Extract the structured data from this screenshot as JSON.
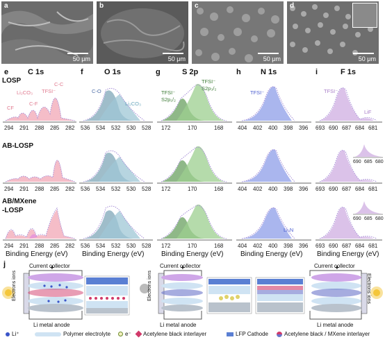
{
  "sem_panels": [
    {
      "letter": "a",
      "scale": "50 μm"
    },
    {
      "letter": "b",
      "scale": "50 μm"
    },
    {
      "letter": "c",
      "scale": "50 μm"
    },
    {
      "letter": "d",
      "scale": "50 μm"
    }
  ],
  "xps": {
    "columns": [
      {
        "letter": "e",
        "title": "C 1s"
      },
      {
        "letter": "f",
        "title": "O 1s"
      },
      {
        "letter": "g",
        "title": "S 2p"
      },
      {
        "letter": "h",
        "title": "N 1s"
      },
      {
        "letter": "i",
        "title": "F 1s"
      }
    ],
    "rows": [
      {
        "label": "LOSP"
      },
      {
        "label": "AB-LOSP"
      },
      {
        "label_line1": "AB/MXene",
        "label_line2": "-LOSP"
      }
    ],
    "axis_title": "Binding Energy (eV)",
    "annotations": {
      "c1s_cf3": "CF",
      "c1s_li2co3": "Li₂CO₃",
      "c1s_cf": "C-F",
      "c1s_tfsi": "TFSI⁻",
      "c1s_cc": "C-C",
      "o1s_co": "C-O",
      "o1s_li2co3": "Li₂CO₃",
      "s2p_left_1": "TFSI⁻",
      "s2p_left_2": "S2p₁/₂",
      "s2p_right_1": "TFSI⁻",
      "s2p_right_2": "S2p₃/₂",
      "n1s_tfsi": "TFSI⁻",
      "n1s_li3n": "Li₃N",
      "f1s_tfsi": "TFSI⁻",
      "f1s_lif": "LiF"
    },
    "ticks": {
      "c1s": [
        "294",
        "291",
        "288",
        "285",
        "282"
      ],
      "o1s": [
        "536",
        "534",
        "532",
        "530",
        "528"
      ],
      "s2p": [
        "172",
        "170",
        "168"
      ],
      "n1s": [
        "404",
        "402",
        "400",
        "398",
        "396"
      ],
      "f1s": [
        "693",
        "690",
        "687",
        "684",
        "681"
      ],
      "f1s_inset": [
        "690",
        "685",
        "680"
      ]
    },
    "colors": {
      "c1s": "#f2a7b5",
      "o1s": "#9fc7d6",
      "s2p": "#9ccf8f",
      "n1s": "#8d9ee8",
      "f1s": "#d2b3e3",
      "raw": "#a48bd6"
    }
  },
  "schematic": {
    "letter": "j",
    "current_collector": "Current collector",
    "li_anode": "Li metal anode",
    "electrons_ions": "Electrons ions",
    "legend": {
      "li_ion": "Li⁺",
      "polymer": "Polymer electrolyte",
      "electron": "e⁻",
      "ab_interlayer": "Acetylene black interlayer",
      "lfp": "LFP Cathode",
      "ab_mxene": "Acetylene black / MXene interlayer"
    },
    "colors": {
      "collector": "#cfa6e8",
      "anode": "#b9c2cc",
      "electrolyte": "#cfe3f3",
      "li_dot": "#3a55c9",
      "ab": "#d13a6a",
      "mxene": "#6a74c9",
      "cathode_blue": "#5a7fd3",
      "lamp": "#f4c63a"
    }
  }
}
